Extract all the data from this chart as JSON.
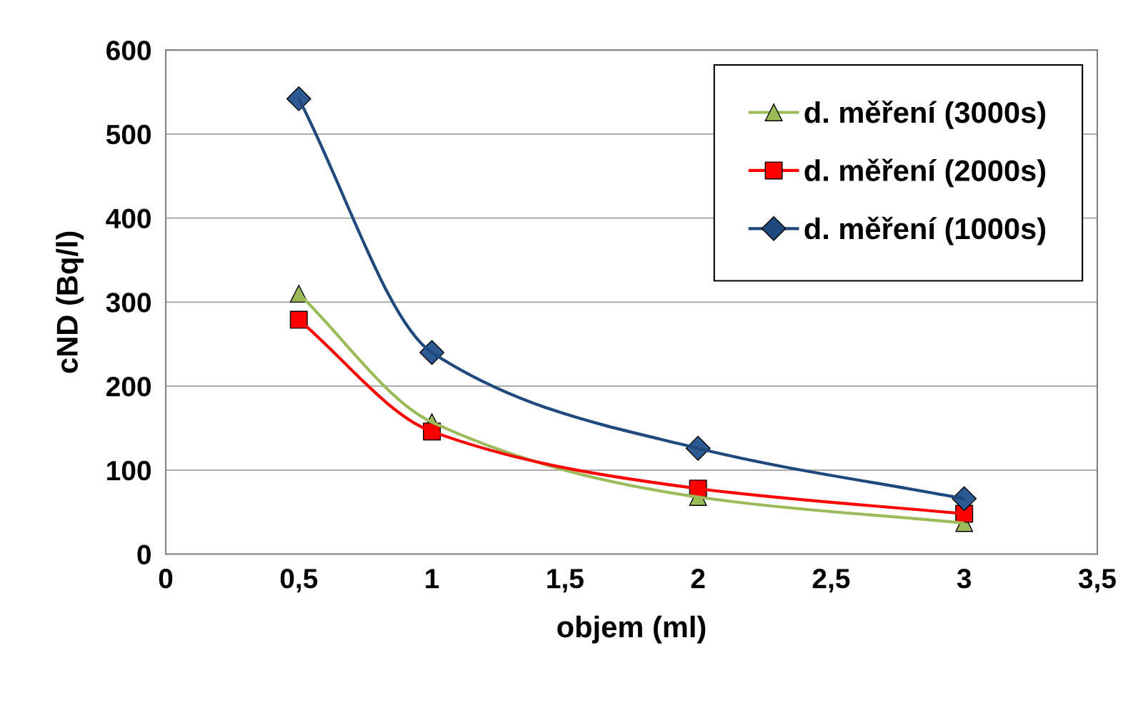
{
  "chart_data": {
    "type": "line",
    "xlabel": "objem (ml)",
    "ylabel": "cND (Bq/l)",
    "x": [
      0.5,
      1,
      2,
      3
    ],
    "series": [
      {
        "name": "d. měření (3000s)",
        "color": "#9bbb59",
        "marker": "triangle",
        "values": [
          310,
          157,
          68,
          37
        ]
      },
      {
        "name": "d. měření (2000s)",
        "color": "#ff0000",
        "marker": "square",
        "values": [
          279,
          146,
          78,
          48
        ]
      },
      {
        "name": "d. měření (1000s)",
        "color": "#1f497d",
        "marker": "diamond",
        "colors": [
          "#2e5a94",
          "#2e5a94",
          "#2e5a94",
          "#2e5a94"
        ],
        "values": [
          542,
          240,
          126,
          66
        ]
      }
    ],
    "xlim": [
      0,
      3.5
    ],
    "ylim": [
      0,
      600
    ],
    "xticks": [
      0,
      {
        "value": 0.5,
        "label": "0,5"
      },
      1,
      {
        "value": 1.5,
        "label": "1,5"
      },
      2,
      {
        "value": 2.5,
        "label": "2,5"
      },
      3,
      {
        "value": 3.5,
        "label": "3,5"
      }
    ],
    "yticks": [
      0,
      100,
      200,
      300,
      400,
      500,
      600
    ],
    "grid": "y",
    "legend": "top right",
    "line_style": "solid"
  }
}
